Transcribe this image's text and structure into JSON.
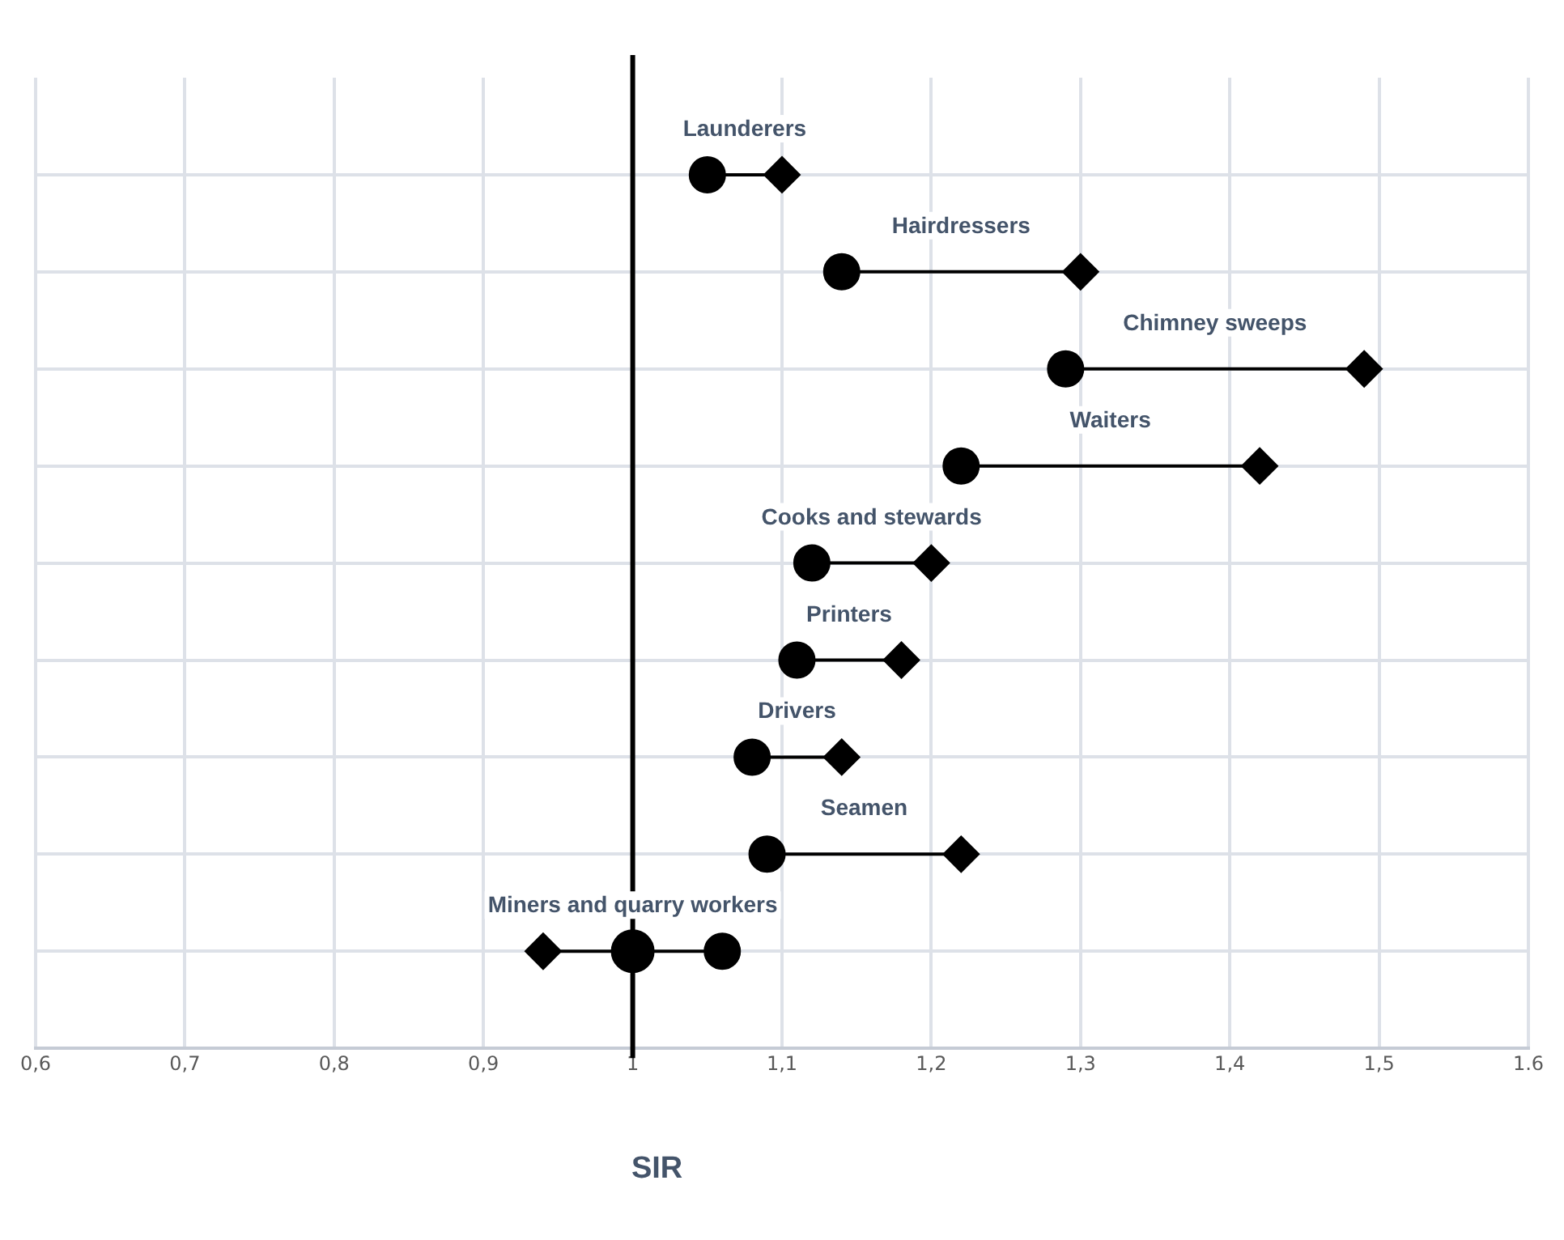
{
  "chart_data": {
    "type": "scatter",
    "orientation": "horizontal",
    "xlabel": "SIR",
    "categories": [
      "Launderers",
      "Hairdressers",
      "Chimney sweeps",
      "Waiters",
      "Cooks and stewards",
      "Printers",
      "Drivers",
      "Seamen",
      "Miners and quarry workers"
    ],
    "series": [
      {
        "color": "#000000",
        "marker": "circle",
        "values": [
          1.05,
          1.14,
          1.29,
          1.22,
          1.12,
          1.11,
          1.08,
          1.09,
          1.06
        ]
      },
      {
        "color": "#000000",
        "marker": "diamond",
        "values": [
          1.1,
          1.3,
          1.49,
          1.42,
          1.2,
          1.18,
          1.14,
          1.22,
          0.94
        ]
      },
      {
        "color": "#000000",
        "marker": "circle",
        "values": [
          null,
          null,
          null,
          null,
          null,
          null,
          null,
          null,
          1.0
        ]
      }
    ],
    "xlim": [
      0.6,
      1.6
    ],
    "xticks": [
      {
        "value": 0.6,
        "label": "0,6"
      },
      {
        "value": 0.7,
        "label": "0,7"
      },
      {
        "value": 0.8,
        "label": "0,8"
      },
      {
        "value": 0.9,
        "label": "0,9"
      },
      1,
      {
        "value": 1.1,
        "label": "1,1"
      },
      {
        "value": 1.2,
        "label": "1,2"
      },
      {
        "value": 1.3,
        "label": "1,3"
      },
      {
        "value": 1.4,
        "label": "1,4"
      },
      {
        "value": 1.5,
        "label": "1,5"
      },
      1.6
    ],
    "ref_lines": [
      {
        "axis": "x",
        "value": 1,
        "color": "#000000"
      }
    ],
    "grid": true,
    "tick_labels": "x",
    "legend": false
  }
}
